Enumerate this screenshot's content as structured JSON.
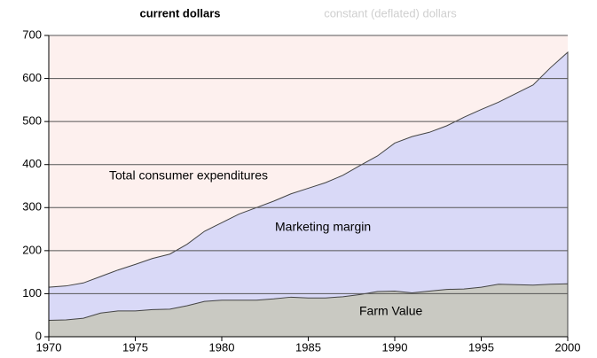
{
  "tabs": [
    "current dollars",
    "constant (deflated) dollars"
  ],
  "chart_data": {
    "type": "area",
    "x": [
      1970,
      1971,
      1972,
      1973,
      1974,
      1975,
      1976,
      1977,
      1978,
      1979,
      1980,
      1981,
      1982,
      1983,
      1984,
      1985,
      1986,
      1987,
      1988,
      1989,
      1990,
      1991,
      1992,
      1993,
      1994,
      1995,
      1996,
      1997,
      1998,
      1999,
      2000
    ],
    "series": [
      {
        "name": "Total consumer expenditures",
        "color": "#d9d9f7",
        "values": [
          115,
          118,
          125,
          140,
          155,
          168,
          182,
          192,
          215,
          245,
          265,
          285,
          300,
          315,
          332,
          345,
          358,
          375,
          398,
          420,
          450,
          465,
          475,
          490,
          510,
          528,
          545,
          565,
          585,
          625,
          661
        ]
      },
      {
        "name": "Farm Value",
        "color": "#c9c9c2",
        "values": [
          38,
          39,
          43,
          55,
          60,
          60,
          63,
          64,
          72,
          82,
          85,
          85,
          85,
          88,
          92,
          90,
          90,
          93,
          98,
          105,
          106,
          102,
          106,
          110,
          111,
          115,
          122,
          121,
          120,
          122,
          123
        ]
      }
    ],
    "annotations": [
      "Marketing margin"
    ],
    "background": "#fdf0ee",
    "xlim": [
      1970,
      2000
    ],
    "xticks": [
      1970,
      1975,
      1980,
      1985,
      1990,
      1995,
      2000
    ],
    "ylim": [
      0,
      700
    ],
    "yticks": [
      0,
      100,
      200,
      300,
      400,
      500,
      600,
      700
    ],
    "grid": true
  }
}
